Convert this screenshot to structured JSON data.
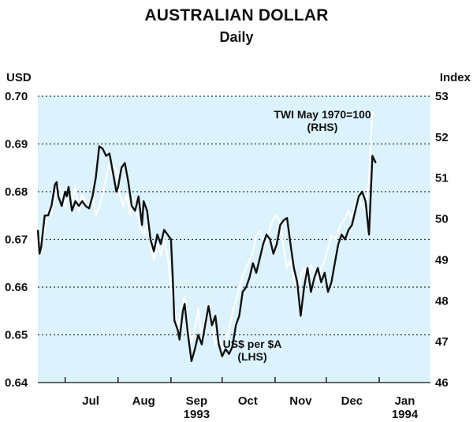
{
  "colors": {
    "panel": "#dcf2fc",
    "usd_line": "#111111",
    "twi_line": "#ffffff",
    "grid": "#333333"
  },
  "chart_data": {
    "type": "line",
    "title": "AUSTRALIAN DOLLAR",
    "subtitle": "Daily",
    "left_axis": {
      "label": "USD",
      "ylim": [
        0.64,
        0.7
      ],
      "ticks": [
        "0.64",
        "0.65",
        "0.66",
        "0.67",
        "0.68",
        "0.69",
        "0.70"
      ]
    },
    "right_axis": {
      "label": "Index",
      "ylim": [
        46,
        53
      ],
      "ticks": [
        "46",
        "47",
        "48",
        "49",
        "50",
        "51",
        "52",
        "53"
      ]
    },
    "x_axis": {
      "range": [
        "1993-06-15",
        "1994-01-31"
      ],
      "month_ticks": [
        "1993-07-01",
        "1993-08-01",
        "1993-09-01",
        "1993-10-01",
        "1993-11-01",
        "1993-12-01",
        "1994-01-01",
        "1994-02-01"
      ],
      "month_labels": [
        {
          "date": "1993-07-16",
          "text": "Jul"
        },
        {
          "date": "1993-08-16",
          "text": "Aug"
        },
        {
          "date": "1993-09-16",
          "text": "Sep"
        },
        {
          "date": "1993-10-16",
          "text": "Oct"
        },
        {
          "date": "1993-11-16",
          "text": "Nov"
        },
        {
          "date": "1993-12-16",
          "text": "Dec"
        },
        {
          "date": "1994-01-16",
          "text": "Jan"
        }
      ],
      "year_labels": [
        {
          "date": "1993-09-16",
          "text": "1993"
        },
        {
          "date": "1994-01-16",
          "text": "1994"
        }
      ]
    },
    "grid": "horizontal dotted",
    "series": [
      {
        "name": "TWI May 1970=100 (RHS)",
        "axis": "right",
        "points": [
          [
            "1993-06-15",
            49.6
          ],
          [
            "1993-06-17",
            49.4
          ],
          [
            "1993-06-19",
            49.7
          ],
          [
            "1993-06-21",
            50.2
          ],
          [
            "1993-06-23",
            50.1
          ],
          [
            "1993-06-25",
            50.5
          ],
          [
            "1993-06-27",
            50.8
          ],
          [
            "1993-06-29",
            50.7
          ],
          [
            "1993-07-01",
            50.3
          ],
          [
            "1993-07-03",
            50.6
          ],
          [
            "1993-07-05",
            50.4
          ],
          [
            "1993-07-07",
            50.8
          ],
          [
            "1993-07-09",
            50.2
          ],
          [
            "1993-07-11",
            50.6
          ],
          [
            "1993-07-13",
            50.4
          ],
          [
            "1993-07-15",
            50.3
          ],
          [
            "1993-07-17",
            50.5
          ],
          [
            "1993-07-19",
            50.1
          ],
          [
            "1993-07-21",
            50.3
          ],
          [
            "1993-07-23",
            50.6
          ],
          [
            "1993-07-25",
            51.0
          ],
          [
            "1993-07-27",
            51.4
          ],
          [
            "1993-07-29",
            51.3
          ],
          [
            "1993-07-31",
            51.2
          ],
          [
            "1993-08-02",
            50.6
          ],
          [
            "1993-08-04",
            50.3
          ],
          [
            "1993-08-06",
            50.6
          ],
          [
            "1993-08-08",
            50.1
          ],
          [
            "1993-08-10",
            50.5
          ],
          [
            "1993-08-12",
            50.2
          ],
          [
            "1993-08-14",
            49.8
          ],
          [
            "1993-08-16",
            49.6
          ],
          [
            "1993-08-18",
            49.9
          ],
          [
            "1993-08-20",
            49.4
          ],
          [
            "1993-08-22",
            49.0
          ],
          [
            "1993-08-24",
            49.4
          ],
          [
            "1993-08-26",
            49.1
          ],
          [
            "1993-08-28",
            49.5
          ],
          [
            "1993-08-30",
            49.1
          ],
          [
            "1993-09-01",
            48.3
          ],
          [
            "1993-09-03",
            47.8
          ],
          [
            "1993-09-05",
            47.3
          ],
          [
            "1993-09-07",
            47.8
          ],
          [
            "1993-09-09",
            48.1
          ],
          [
            "1993-09-11",
            47.4
          ],
          [
            "1993-09-13",
            47.0
          ],
          [
            "1993-09-15",
            47.3
          ],
          [
            "1993-09-17",
            47.8
          ],
          [
            "1993-09-19",
            47.1
          ],
          [
            "1993-09-21",
            47.5
          ],
          [
            "1993-09-23",
            47.9
          ],
          [
            "1993-09-25",
            47.5
          ],
          [
            "1993-09-27",
            46.9
          ],
          [
            "1993-09-29",
            47.1
          ],
          [
            "1993-10-01",
            46.8
          ],
          [
            "1993-10-03",
            47.0
          ],
          [
            "1993-10-05",
            47.3
          ],
          [
            "1993-10-07",
            47.7
          ],
          [
            "1993-10-09",
            48.0
          ],
          [
            "1993-10-11",
            48.3
          ],
          [
            "1993-10-13",
            48.6
          ],
          [
            "1993-10-15",
            48.8
          ],
          [
            "1993-10-17",
            49.0
          ],
          [
            "1993-10-19",
            49.2
          ],
          [
            "1993-10-21",
            49.6
          ],
          [
            "1993-10-23",
            49.7
          ],
          [
            "1993-10-25",
            49.5
          ],
          [
            "1993-10-27",
            49.4
          ],
          [
            "1993-10-29",
            49.8
          ],
          [
            "1993-10-31",
            50.0
          ],
          [
            "1993-11-02",
            50.1
          ],
          [
            "1993-11-04",
            49.9
          ],
          [
            "1993-11-06",
            49.3
          ],
          [
            "1993-11-08",
            48.8
          ],
          [
            "1993-11-10",
            49.0
          ],
          [
            "1993-11-12",
            48.5
          ],
          [
            "1993-11-14",
            48.3
          ],
          [
            "1993-11-16",
            48.6
          ],
          [
            "1993-11-18",
            48.8
          ],
          [
            "1993-11-20",
            48.5
          ],
          [
            "1993-11-22",
            48.9
          ],
          [
            "1993-11-24",
            48.7
          ],
          [
            "1993-11-26",
            48.5
          ],
          [
            "1993-11-28",
            48.8
          ],
          [
            "1993-11-30",
            49.0
          ],
          [
            "1993-12-02",
            49.3
          ],
          [
            "1993-12-04",
            49.6
          ],
          [
            "1993-12-06",
            49.5
          ],
          [
            "1993-12-08",
            49.7
          ],
          [
            "1993-12-10",
            49.9
          ],
          [
            "1993-12-12",
            50.0
          ],
          [
            "1993-12-14",
            50.2
          ],
          [
            "1993-12-16",
            50.0
          ],
          [
            "1993-12-18",
            50.4
          ],
          [
            "1993-12-20",
            50.5
          ],
          [
            "1993-12-22",
            50.3
          ],
          [
            "1993-12-24",
            50.2
          ],
          [
            "1993-12-26",
            51.0
          ],
          [
            "1993-12-28",
            52.6
          ],
          [
            "1993-12-30",
            52.5
          ]
        ]
      },
      {
        "name": "US$ per $A (LHS)",
        "axis": "left",
        "points": [
          [
            "1993-06-15",
            0.672
          ],
          [
            "1993-06-16",
            0.667
          ],
          [
            "1993-06-17",
            0.6685
          ],
          [
            "1993-06-19",
            0.675
          ],
          [
            "1993-06-21",
            0.675
          ],
          [
            "1993-06-23",
            0.677
          ],
          [
            "1993-06-25",
            0.6815
          ],
          [
            "1993-06-26",
            0.682
          ],
          [
            "1993-06-27",
            0.679
          ],
          [
            "1993-06-29",
            0.677
          ],
          [
            "1993-07-01",
            0.68
          ],
          [
            "1993-07-02",
            0.679
          ],
          [
            "1993-07-03",
            0.681
          ],
          [
            "1993-07-05",
            0.676
          ],
          [
            "1993-07-07",
            0.678
          ],
          [
            "1993-07-09",
            0.677
          ],
          [
            "1993-07-11",
            0.678
          ],
          [
            "1993-07-13",
            0.677
          ],
          [
            "1993-07-15",
            0.6765
          ],
          [
            "1993-07-17",
            0.679
          ],
          [
            "1993-07-19",
            0.683
          ],
          [
            "1993-07-21",
            0.6895
          ],
          [
            "1993-07-23",
            0.689
          ],
          [
            "1993-07-25",
            0.6875
          ],
          [
            "1993-07-27",
            0.688
          ],
          [
            "1993-07-29",
            0.684
          ],
          [
            "1993-07-31",
            0.68
          ],
          [
            "1993-08-01",
            0.681
          ],
          [
            "1993-08-03",
            0.685
          ],
          [
            "1993-08-05",
            0.686
          ],
          [
            "1993-08-07",
            0.682
          ],
          [
            "1993-08-09",
            0.677
          ],
          [
            "1993-08-11",
            0.676
          ],
          [
            "1993-08-13",
            0.679
          ],
          [
            "1993-08-15",
            0.673
          ],
          [
            "1993-08-16",
            0.678
          ],
          [
            "1993-08-18",
            0.676
          ],
          [
            "1993-08-20",
            0.67
          ],
          [
            "1993-08-22",
            0.6675
          ],
          [
            "1993-08-24",
            0.671
          ],
          [
            "1993-08-26",
            0.669
          ],
          [
            "1993-08-28",
            0.672
          ],
          [
            "1993-08-30",
            0.671
          ],
          [
            "1993-09-01",
            0.67
          ],
          [
            "1993-09-02",
            0.662
          ],
          [
            "1993-09-03",
            0.653
          ],
          [
            "1993-09-05",
            0.651
          ],
          [
            "1993-09-06",
            0.649
          ],
          [
            "1993-09-08",
            0.655
          ],
          [
            "1993-09-09",
            0.6565
          ],
          [
            "1993-09-11",
            0.65
          ],
          [
            "1993-09-13",
            0.6445
          ],
          [
            "1993-09-15",
            0.647
          ],
          [
            "1993-09-17",
            0.65
          ],
          [
            "1993-09-19",
            0.648
          ],
          [
            "1993-09-21",
            0.652
          ],
          [
            "1993-09-23",
            0.656
          ],
          [
            "1993-09-25",
            0.652
          ],
          [
            "1993-09-27",
            0.654
          ],
          [
            "1993-09-29",
            0.648
          ],
          [
            "1993-10-01",
            0.6455
          ],
          [
            "1993-10-03",
            0.647
          ],
          [
            "1993-10-05",
            0.646
          ],
          [
            "1993-10-07",
            0.6475
          ],
          [
            "1993-10-09",
            0.652
          ],
          [
            "1993-10-11",
            0.654
          ],
          [
            "1993-10-13",
            0.659
          ],
          [
            "1993-10-15",
            0.66
          ],
          [
            "1993-10-17",
            0.662
          ],
          [
            "1993-10-19",
            0.665
          ],
          [
            "1993-10-21",
            0.663
          ],
          [
            "1993-10-23",
            0.666
          ],
          [
            "1993-10-25",
            0.669
          ],
          [
            "1993-10-27",
            0.671
          ],
          [
            "1993-10-29",
            0.67
          ],
          [
            "1993-10-31",
            0.667
          ],
          [
            "1993-11-02",
            0.669
          ],
          [
            "1993-11-04",
            0.673
          ],
          [
            "1993-11-06",
            0.674
          ],
          [
            "1993-11-08",
            0.6745
          ],
          [
            "1993-11-10",
            0.669
          ],
          [
            "1993-11-12",
            0.664
          ],
          [
            "1993-11-14",
            0.661
          ],
          [
            "1993-11-16",
            0.654
          ],
          [
            "1993-11-18",
            0.66
          ],
          [
            "1993-11-20",
            0.664
          ],
          [
            "1993-11-22",
            0.659
          ],
          [
            "1993-11-24",
            0.662
          ],
          [
            "1993-11-26",
            0.664
          ],
          [
            "1993-11-28",
            0.661
          ],
          [
            "1993-11-30",
            0.663
          ],
          [
            "1993-12-02",
            0.659
          ],
          [
            "1993-12-04",
            0.661
          ],
          [
            "1993-12-06",
            0.665
          ],
          [
            "1993-12-08",
            0.669
          ],
          [
            "1993-12-10",
            0.671
          ],
          [
            "1993-12-12",
            0.67
          ],
          [
            "1993-12-14",
            0.672
          ],
          [
            "1993-12-16",
            0.673
          ],
          [
            "1993-12-18",
            0.676
          ],
          [
            "1993-12-20",
            0.679
          ],
          [
            "1993-12-22",
            0.68
          ],
          [
            "1993-12-24",
            0.678
          ],
          [
            "1993-12-26",
            0.671
          ],
          [
            "1993-12-28",
            0.6875
          ],
          [
            "1993-12-30",
            0.686
          ]
        ]
      }
    ],
    "annotations": [
      {
        "series_ref": 0,
        "lines": [
          "TWI May 1970=100",
          "(RHS)"
        ]
      },
      {
        "series_ref": 1,
        "lines": [
          "US$ per $A",
          "(LHS)"
        ]
      }
    ]
  }
}
